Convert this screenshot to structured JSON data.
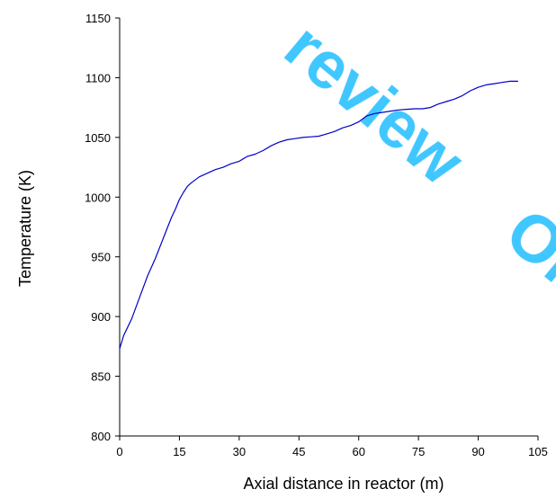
{
  "chart_data": {
    "type": "line",
    "title": "",
    "xlabel": "Axial distance in reactor  (m)",
    "ylabel": "Temperature (K)",
    "xlim": [
      0,
      105
    ],
    "ylim": [
      800,
      1150
    ],
    "xticks": [
      0,
      15,
      30,
      45,
      60,
      75,
      90,
      105
    ],
    "yticks": [
      800,
      850,
      900,
      950,
      1000,
      1050,
      1100,
      1150
    ],
    "grid": false,
    "legend": "none",
    "series": [
      {
        "color": "#0000cc",
        "x": [
          0,
          1,
          3,
          5,
          7,
          9,
          11,
          13,
          14,
          15,
          16,
          17,
          18,
          20,
          22,
          24,
          26,
          28,
          30,
          32,
          34,
          36,
          38,
          40,
          42,
          44,
          46,
          48,
          50,
          52,
          54,
          56,
          58,
          60,
          62,
          64,
          66,
          68,
          70,
          72,
          74,
          76,
          78,
          80,
          82,
          84,
          86,
          88,
          90,
          92,
          94,
          96,
          98,
          100
        ],
        "y": [
          873,
          884,
          898,
          916,
          934,
          949,
          966,
          983,
          990,
          998,
          1004,
          1009,
          1012,
          1017,
          1020,
          1023,
          1025,
          1028,
          1030,
          1034,
          1036,
          1039,
          1043,
          1046,
          1048,
          1049,
          1050,
          1050.5,
          1051,
          1053,
          1055,
          1058,
          1060,
          1063,
          1068,
          1070,
          1071,
          1072,
          1073,
          1073.5,
          1074,
          1074,
          1075,
          1078,
          1080,
          1082,
          1085,
          1089,
          1092,
          1094,
          1095,
          1096,
          1097,
          1097
        ]
      }
    ]
  },
  "watermark": {
    "words": [
      "review",
      "Only"
    ],
    "color": "#00b4ff"
  }
}
